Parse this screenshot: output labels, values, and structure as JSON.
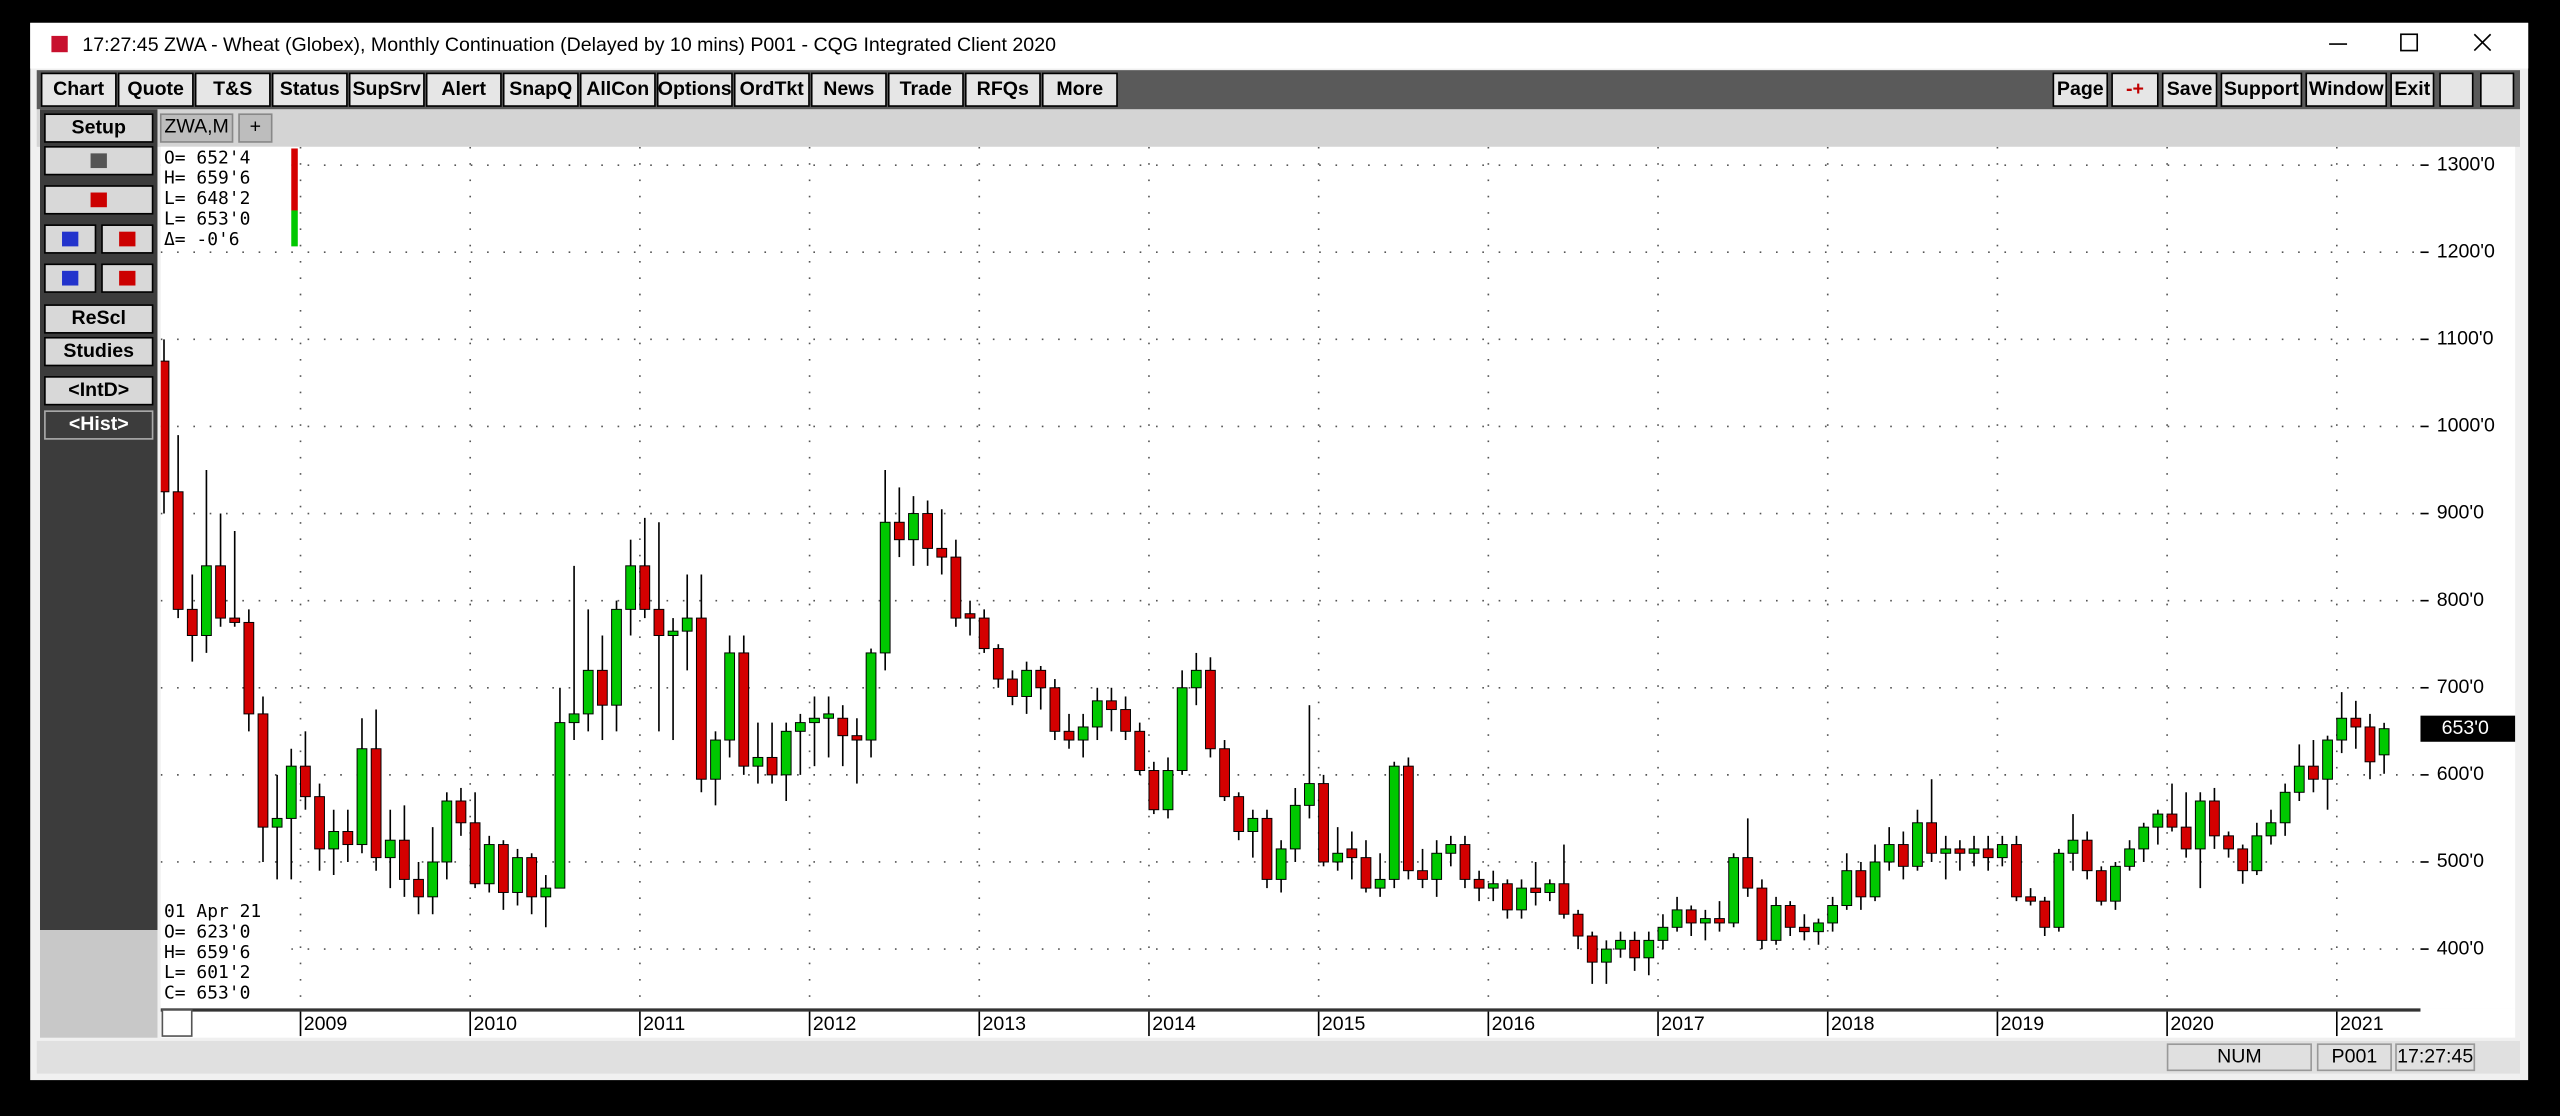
{
  "window": {
    "title": "17:27:45   ZWA - Wheat (Globex), Monthly Continuation (Delayed by 10 mins)    P001 - CQG Integrated Client 2020"
  },
  "toolbar": {
    "left": [
      "Chart",
      "Quote",
      "T&S",
      "Status",
      "SupSrv",
      "Alert",
      "SnapQ",
      "AllCon",
      "Options",
      "OrdTkt",
      "News",
      "Trade",
      "RFQs",
      "More"
    ],
    "right": [
      "Page",
      "-+",
      "Save",
      "Support",
      "Window",
      "Exit"
    ]
  },
  "sidebar": {
    "top": "Setup",
    "buttons": [
      "ReScl",
      "Studies",
      "<IntD>",
      "<Hist>"
    ]
  },
  "tabs": {
    "active": "ZWA,M",
    "add": "+"
  },
  "quote_box": [
    "O=   652'4",
    "H=   659'6",
    "L=   648'2",
    "L=   653'0",
    "Δ=    -0'6"
  ],
  "bar_box": {
    "date": "01 Apr 21",
    "lines": [
      "O=    623'0",
      "H=    659'6",
      "L=    601'2",
      "C=    653'0"
    ]
  },
  "status_bar": [
    "NUM",
    "P001",
    "17:27:45"
  ],
  "chart_data": {
    "type": "candlestick",
    "up_color": "#00c800",
    "down_color": "#d40000",
    "grid": true,
    "ylim": [
      332,
      1321
    ],
    "yticks": [
      {
        "value": 400,
        "label": "400'0"
      },
      {
        "value": 500,
        "label": "500'0"
      },
      {
        "value": 600,
        "label": "600'0"
      },
      {
        "value": 700,
        "label": "700'0"
      },
      {
        "value": 800,
        "label": "800'0"
      },
      {
        "value": 900,
        "label": "900'0"
      },
      {
        "value": 1000,
        "label": "1000'0"
      },
      {
        "value": 1100,
        "label": "1100'0"
      },
      {
        "value": 1200,
        "label": "1200'0"
      },
      {
        "value": 1300,
        "label": "1300'0"
      }
    ],
    "last_price": {
      "value": 653,
      "label": "653'0"
    },
    "categories": [
      null,
      null,
      null,
      null,
      null,
      null,
      null,
      null,
      null,
      null,
      "2009",
      null,
      null,
      null,
      null,
      null,
      null,
      null,
      null,
      null,
      null,
      null,
      "2010",
      null,
      null,
      null,
      null,
      null,
      null,
      null,
      null,
      null,
      null,
      null,
      "2011",
      null,
      null,
      null,
      null,
      null,
      null,
      null,
      null,
      null,
      null,
      null,
      "2012",
      null,
      null,
      null,
      null,
      null,
      null,
      null,
      null,
      null,
      null,
      null,
      "2013",
      null,
      null,
      null,
      null,
      null,
      null,
      null,
      null,
      null,
      null,
      null,
      "2014",
      null,
      null,
      null,
      null,
      null,
      null,
      null,
      null,
      null,
      null,
      null,
      "2015",
      null,
      null,
      null,
      null,
      null,
      null,
      null,
      null,
      null,
      null,
      null,
      "2016",
      null,
      null,
      null,
      null,
      null,
      null,
      null,
      null,
      null,
      null,
      null,
      "2017",
      null,
      null,
      null,
      null,
      null,
      null,
      null,
      null,
      null,
      null,
      null,
      "2018",
      null,
      null,
      null,
      null,
      null,
      null,
      null,
      null,
      null,
      null,
      null,
      "2019",
      null,
      null,
      null,
      null,
      null,
      null,
      null,
      null,
      null,
      null,
      null,
      "2020",
      null,
      null,
      null,
      null,
      null,
      null,
      null,
      null,
      null,
      null,
      null,
      "2021",
      null,
      null,
      null
    ],
    "candles": [
      [
        1075,
        1100,
        900,
        925
      ],
      [
        925,
        990,
        780,
        790
      ],
      [
        790,
        830,
        730,
        760
      ],
      [
        760,
        950,
        740,
        840
      ],
      [
        840,
        900,
        770,
        780
      ],
      [
        780,
        880,
        770,
        775
      ],
      [
        775,
        790,
        650,
        670
      ],
      [
        670,
        690,
        500,
        540
      ],
      [
        540,
        600,
        480,
        550
      ],
      [
        550,
        630,
        480,
        610
      ],
      [
        610,
        650,
        560,
        575
      ],
      [
        575,
        590,
        490,
        515
      ],
      [
        515,
        560,
        485,
        535
      ],
      [
        535,
        560,
        500,
        520
      ],
      [
        520,
        665,
        510,
        630
      ],
      [
        630,
        675,
        490,
        505
      ],
      [
        505,
        560,
        470,
        525
      ],
      [
        525,
        565,
        460,
        480
      ],
      [
        480,
        500,
        440,
        460
      ],
      [
        460,
        540,
        440,
        500
      ],
      [
        500,
        580,
        480,
        570
      ],
      [
        570,
        585,
        530,
        545
      ],
      [
        545,
        580,
        470,
        475
      ],
      [
        475,
        530,
        465,
        520
      ],
      [
        520,
        525,
        445,
        465
      ],
      [
        465,
        515,
        450,
        505
      ],
      [
        505,
        510,
        440,
        460
      ],
      [
        460,
        485,
        425,
        470
      ],
      [
        470,
        700,
        470,
        660
      ],
      [
        660,
        840,
        640,
        670
      ],
      [
        670,
        790,
        650,
        720
      ],
      [
        720,
        760,
        640,
        680
      ],
      [
        680,
        800,
        650,
        790
      ],
      [
        790,
        870,
        760,
        840
      ],
      [
        840,
        895,
        780,
        790
      ],
      [
        790,
        890,
        650,
        760
      ],
      [
        760,
        780,
        640,
        765
      ],
      [
        765,
        830,
        720,
        780
      ],
      [
        780,
        830,
        580,
        595
      ],
      [
        595,
        650,
        565,
        640
      ],
      [
        640,
        760,
        620,
        740
      ],
      [
        740,
        760,
        600,
        610
      ],
      [
        610,
        660,
        590,
        620
      ],
      [
        620,
        660,
        590,
        600
      ],
      [
        600,
        660,
        570,
        650
      ],
      [
        650,
        670,
        600,
        660
      ],
      [
        660,
        690,
        610,
        665
      ],
      [
        665,
        690,
        620,
        670
      ],
      [
        665,
        680,
        610,
        645
      ],
      [
        645,
        665,
        590,
        640
      ],
      [
        640,
        745,
        620,
        740
      ],
      [
        740,
        950,
        720,
        890
      ],
      [
        890,
        930,
        850,
        870
      ],
      [
        870,
        920,
        840,
        900
      ],
      [
        900,
        915,
        840,
        860
      ],
      [
        860,
        905,
        830,
        850
      ],
      [
        850,
        870,
        770,
        780
      ],
      [
        785,
        800,
        760,
        780
      ],
      [
        780,
        790,
        740,
        745
      ],
      [
        745,
        750,
        700,
        710
      ],
      [
        710,
        720,
        680,
        690
      ],
      [
        690,
        730,
        670,
        720
      ],
      [
        720,
        725,
        675,
        700
      ],
      [
        700,
        710,
        640,
        650
      ],
      [
        650,
        670,
        630,
        640
      ],
      [
        640,
        670,
        620,
        655
      ],
      [
        655,
        700,
        640,
        685
      ],
      [
        685,
        700,
        650,
        675
      ],
      [
        675,
        690,
        640,
        650
      ],
      [
        650,
        660,
        600,
        605
      ],
      [
        605,
        615,
        555,
        560
      ],
      [
        560,
        620,
        550,
        605
      ],
      [
        605,
        720,
        600,
        700
      ],
      [
        700,
        740,
        680,
        720
      ],
      [
        720,
        735,
        620,
        630
      ],
      [
        630,
        640,
        570,
        575
      ],
      [
        575,
        580,
        525,
        535
      ],
      [
        535,
        560,
        505,
        550
      ],
      [
        550,
        560,
        470,
        480
      ],
      [
        480,
        525,
        465,
        515
      ],
      [
        515,
        585,
        500,
        565
      ],
      [
        565,
        680,
        550,
        590
      ],
      [
        590,
        600,
        495,
        500
      ],
      [
        500,
        540,
        490,
        510
      ],
      [
        515,
        535,
        480,
        505
      ],
      [
        505,
        525,
        465,
        470
      ],
      [
        470,
        510,
        460,
        480
      ],
      [
        480,
        615,
        470,
        610
      ],
      [
        610,
        620,
        480,
        490
      ],
      [
        490,
        515,
        470,
        480
      ],
      [
        480,
        525,
        460,
        510
      ],
      [
        510,
        530,
        495,
        520
      ],
      [
        520,
        530,
        470,
        480
      ],
      [
        480,
        490,
        455,
        470
      ],
      [
        470,
        490,
        455,
        475
      ],
      [
        475,
        480,
        435,
        445
      ],
      [
        445,
        480,
        435,
        470
      ],
      [
        470,
        500,
        450,
        465
      ],
      [
        465,
        480,
        455,
        475
      ],
      [
        475,
        520,
        435,
        440
      ],
      [
        440,
        445,
        400,
        415
      ],
      [
        415,
        420,
        360,
        385
      ],
      [
        385,
        410,
        360,
        400
      ],
      [
        400,
        420,
        390,
        410
      ],
      [
        410,
        420,
        375,
        390
      ],
      [
        390,
        420,
        370,
        410
      ],
      [
        410,
        440,
        400,
        425
      ],
      [
        425,
        460,
        420,
        445
      ],
      [
        445,
        450,
        415,
        430
      ],
      [
        430,
        445,
        410,
        435
      ],
      [
        435,
        455,
        420,
        430
      ],
      [
        430,
        510,
        425,
        505
      ],
      [
        505,
        550,
        460,
        470
      ],
      [
        470,
        480,
        400,
        410
      ],
      [
        410,
        460,
        405,
        450
      ],
      [
        450,
        455,
        415,
        425
      ],
      [
        425,
        440,
        410,
        420
      ],
      [
        420,
        435,
        405,
        430
      ],
      [
        430,
        460,
        420,
        450
      ],
      [
        450,
        510,
        445,
        490
      ],
      [
        490,
        500,
        445,
        460
      ],
      [
        460,
        520,
        455,
        500
      ],
      [
        500,
        540,
        490,
        520
      ],
      [
        520,
        535,
        480,
        495
      ],
      [
        495,
        560,
        490,
        545
      ],
      [
        545,
        595,
        500,
        510
      ],
      [
        510,
        530,
        480,
        515
      ],
      [
        515,
        525,
        490,
        510
      ],
      [
        510,
        530,
        495,
        515
      ],
      [
        515,
        530,
        490,
        505
      ],
      [
        505,
        530,
        495,
        520
      ],
      [
        520,
        530,
        455,
        460
      ],
      [
        460,
        470,
        450,
        455
      ],
      [
        455,
        460,
        415,
        425
      ],
      [
        425,
        515,
        420,
        510
      ],
      [
        510,
        555,
        490,
        525
      ],
      [
        525,
        535,
        480,
        490
      ],
      [
        490,
        495,
        450,
        455
      ],
      [
        455,
        500,
        445,
        495
      ],
      [
        495,
        525,
        490,
        515
      ],
      [
        515,
        545,
        500,
        540
      ],
      [
        540,
        560,
        520,
        555
      ],
      [
        555,
        590,
        535,
        540
      ],
      [
        540,
        580,
        505,
        515
      ],
      [
        515,
        580,
        470,
        570
      ],
      [
        570,
        585,
        515,
        530
      ],
      [
        530,
        535,
        505,
        515
      ],
      [
        515,
        520,
        475,
        490
      ],
      [
        490,
        545,
        485,
        530
      ],
      [
        530,
        560,
        520,
        545
      ],
      [
        545,
        590,
        530,
        580
      ],
      [
        580,
        635,
        570,
        610
      ],
      [
        610,
        640,
        580,
        595
      ],
      [
        595,
        645,
        560,
        640
      ],
      [
        640,
        695,
        625,
        665
      ],
      [
        665,
        685,
        630,
        655
      ],
      [
        655,
        670,
        595,
        615
      ],
      [
        623,
        659.75,
        601.25,
        653
      ]
    ]
  }
}
